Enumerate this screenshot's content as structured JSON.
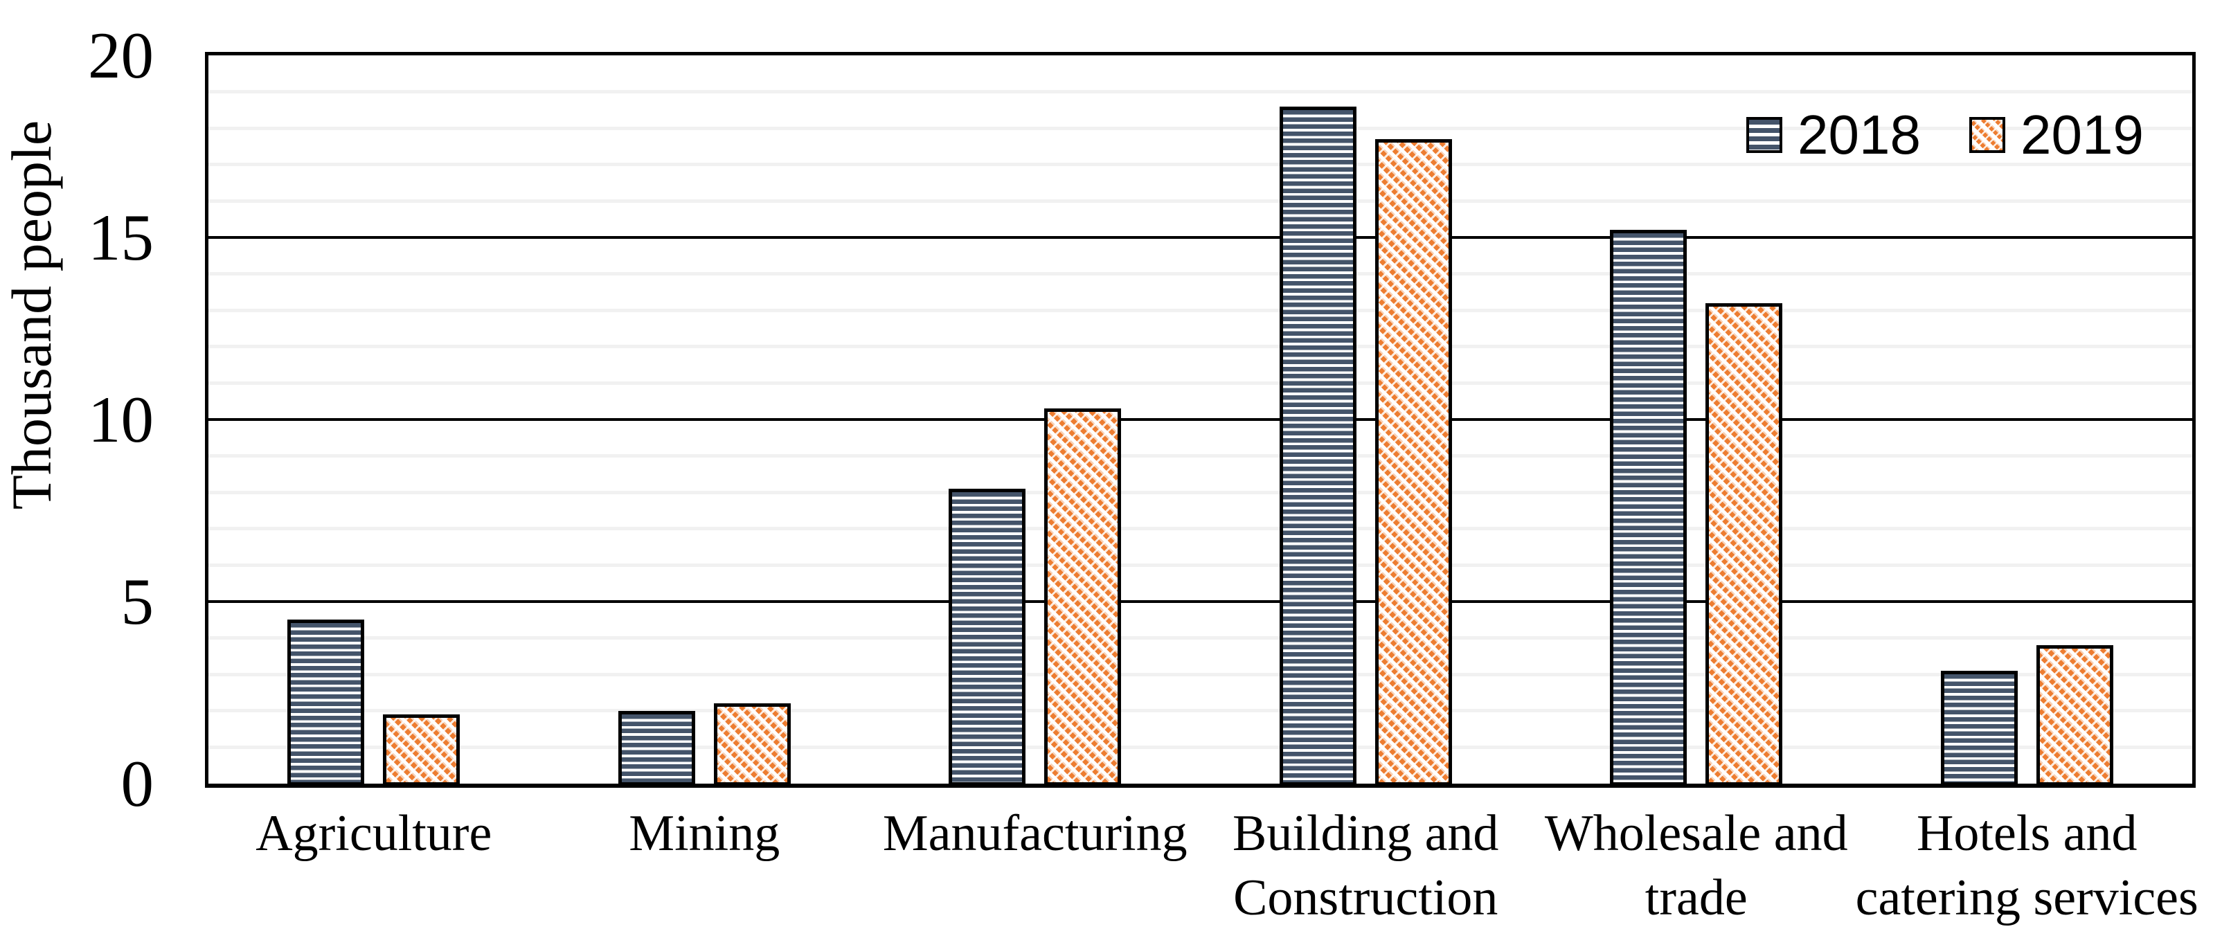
{
  "chart_data": {
    "type": "bar",
    "title": "",
    "ylabel": "Thousand people",
    "xlabel": "",
    "categories": [
      "Agriculture",
      "Mining",
      "Manufacturing",
      "Building and\nConstruction",
      "Wholesale and\ntrade",
      "Hotels and\ncatering services"
    ],
    "series": [
      {
        "name": "2018",
        "pattern": "horizontal-stripes",
        "color": "#44546A",
        "values": [
          4.5,
          2.0,
          8.1,
          18.6,
          15.2,
          3.1
        ]
      },
      {
        "name": "2019",
        "pattern": "diagonal-stripes",
        "color": "#ED7D31",
        "values": [
          1.9,
          2.2,
          10.3,
          17.7,
          13.2,
          3.8
        ]
      }
    ],
    "ylim": [
      0,
      20
    ],
    "yticks": [
      0,
      5,
      10,
      15,
      20
    ],
    "major_unit": 5,
    "minor_unit": 1,
    "grid": {
      "major_color": "#000000",
      "minor_color": "#F1F1F1",
      "minor_on": true,
      "major_on": true
    },
    "legend": {
      "position": "top-right-inside",
      "entries": [
        "2018",
        "2019"
      ]
    },
    "axis_color": "#000000",
    "background": "#FFFFFF"
  }
}
